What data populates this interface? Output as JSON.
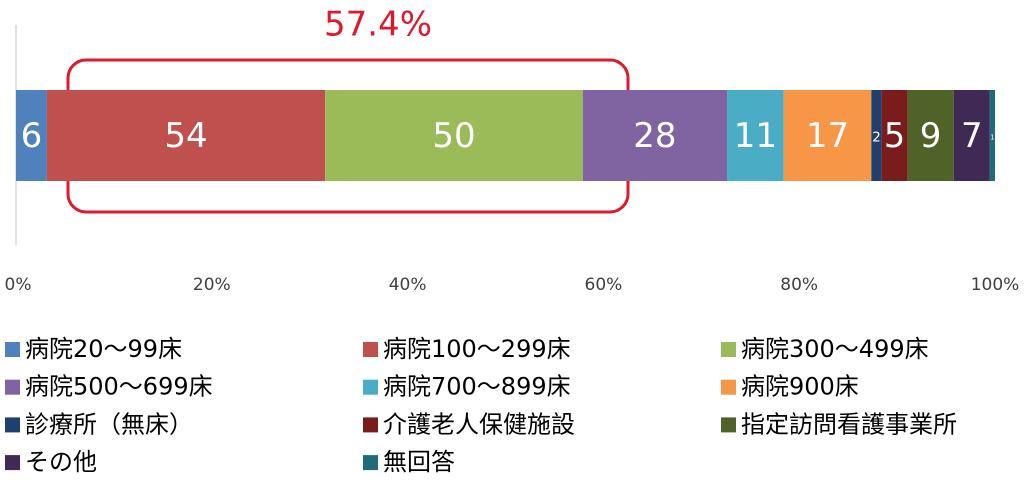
{
  "chart_data": {
    "type": "bar",
    "orientation": "horizontal",
    "stacked": "percent",
    "annotation": "57.4%",
    "series": [
      {
        "name": "病院20〜99床",
        "color": "#4f81bd",
        "values": [
          6
        ]
      },
      {
        "name": "病院100〜299床",
        "color": "#c0504d",
        "values": [
          54
        ]
      },
      {
        "name": "病院300〜499床",
        "color": "#9bbb59",
        "values": [
          50
        ]
      },
      {
        "name": "病院500〜699床",
        "color": "#8064a2",
        "values": [
          28
        ]
      },
      {
        "name": "病院700〜899床",
        "color": "#4bacc6",
        "values": [
          11
        ]
      },
      {
        "name": "病院900床",
        "color": "#f79646",
        "values": [
          17
        ]
      },
      {
        "name": "診療所（無床）",
        "color": "#1f3f6e",
        "values": [
          2
        ]
      },
      {
        "name": "介護老人保健施設",
        "color": "#7b1c1c",
        "values": [
          5
        ]
      },
      {
        "name": "指定訪問看護事業所",
        "color": "#4f6228",
        "values": [
          9
        ]
      },
      {
        "name": "その他",
        "color": "#3f2a56",
        "values": [
          7
        ]
      },
      {
        "name": "無回答",
        "color": "#1f6b7a",
        "values": [
          1
        ]
      }
    ],
    "xlim": [
      0,
      100
    ],
    "xticks": [
      {
        "value": 0,
        "label": "0%"
      },
      {
        "value": 20,
        "label": "20%"
      },
      {
        "value": 40,
        "label": "40%"
      },
      {
        "value": 60,
        "label": "60%"
      },
      {
        "value": 80,
        "label": "80%"
      },
      {
        "value": 100,
        "label": "100%"
      }
    ]
  }
}
